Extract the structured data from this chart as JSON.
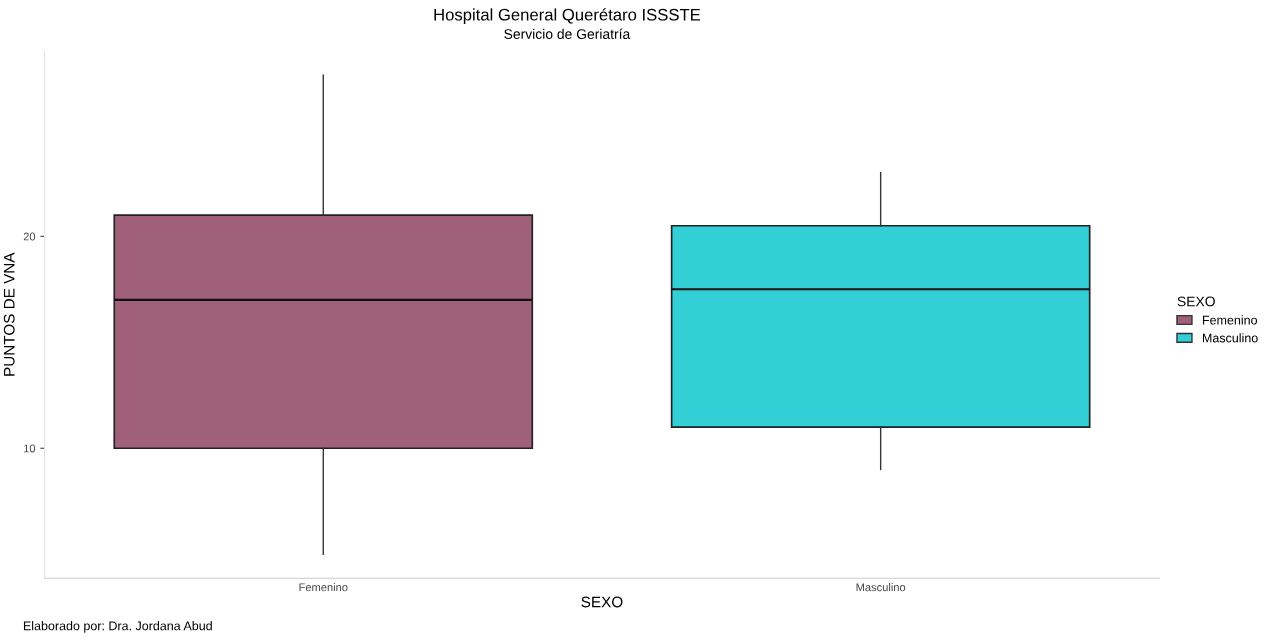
{
  "chart_data": {
    "type": "box",
    "title": "Hospital General Querétaro ISSSTE",
    "subtitle": "Servicio de Geriatría",
    "xlabel": "SEXO",
    "ylabel": "PUNTOS DE VNA",
    "legend_title": "SEXO",
    "legend": "right",
    "grid": false,
    "categories": [
      "Femenino",
      "Masculino"
    ],
    "series": [
      {
        "name": "Femenino",
        "color": "#a0607a",
        "boxes": [
          {
            "low": 5,
            "q1": 10,
            "median": 17,
            "q3": 21,
            "high": 27.6
          },
          null
        ]
      },
      {
        "name": "Masculino",
        "color": "#33cfd6",
        "boxes": [
          null,
          {
            "low": 9,
            "q1": 11,
            "median": 17.5,
            "q3": 20.5,
            "high": 23
          }
        ]
      }
    ],
    "ylim": [
      3.87,
      28.73
    ],
    "yticks": [
      10,
      20
    ],
    "annotations": [
      "Elaborado por: Dra. Jordana Abud"
    ]
  }
}
